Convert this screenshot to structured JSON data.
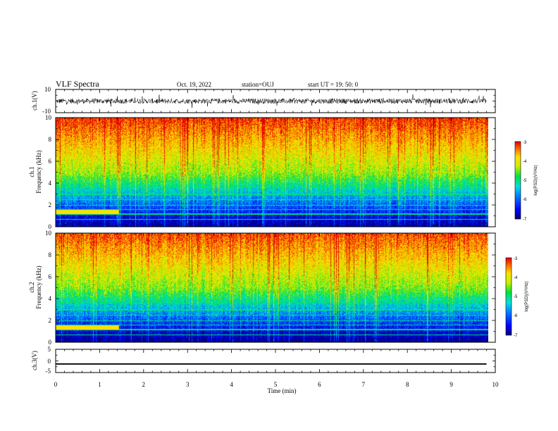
{
  "header": {
    "title": "VLF Spectra",
    "date": "Oct. 19, 2022",
    "station": "station=OUJ",
    "start": "start  UT =   19: 50: 0"
  },
  "chart_data": [
    {
      "type": "line",
      "name": "ch1-waveform",
      "ylabel": "ch.1(V)",
      "ylim": [
        -10,
        10
      ],
      "y_ticks": [
        "10",
        "-10"
      ],
      "xlim": [
        0,
        10
      ],
      "baseline": 0,
      "amplitude_range": [
        -4,
        4
      ]
    },
    {
      "type": "heatmap",
      "name": "ch1-spectrogram",
      "ylabel_top": "ch.1",
      "ylabel": "Frequency  (kHz)",
      "ylim": [
        0,
        10
      ],
      "y_ticks": [
        "0",
        "2",
        "4",
        "6",
        "8",
        "10"
      ],
      "xlim": [
        0,
        10
      ],
      "data_extent_x": [
        0,
        9.8
      ],
      "colorbar": {
        "label": "log(PSD)(V²/Hz)",
        "range": [
          -7,
          -3
        ],
        "ticks": [
          "-3",
          "-4",
          "-5",
          "-6",
          "-7"
        ]
      }
    },
    {
      "type": "heatmap",
      "name": "ch2-spectrogram",
      "ylabel_top": "ch.2",
      "ylabel": "Frequency  (kHz)",
      "ylim": [
        0,
        10
      ],
      "y_ticks": [
        "0",
        "2",
        "4",
        "6",
        "8",
        "10"
      ],
      "xlim": [
        0,
        10
      ],
      "data_extent_x": [
        0,
        9.8
      ],
      "colorbar": {
        "label": "log(PSD)(V²/Hz)",
        "range": [
          -7,
          -3
        ],
        "ticks": [
          "-3",
          "-4",
          "-5",
          "-6",
          "-7"
        ]
      }
    },
    {
      "type": "line",
      "name": "ch3-waveform",
      "ylabel": "ch.3(V)",
      "ylim": [
        -5,
        5
      ],
      "y_ticks": [
        "5",
        "0",
        "-5"
      ],
      "xlim": [
        0,
        10
      ],
      "x": [
        0,
        9.8
      ],
      "y": [
        -1.3,
        -1.3
      ]
    }
  ],
  "xaxis": {
    "label": "Time  (min)",
    "ticks": [
      "0",
      "1",
      "2",
      "3",
      "4",
      "5",
      "6",
      "7",
      "8",
      "9",
      "10"
    ]
  }
}
